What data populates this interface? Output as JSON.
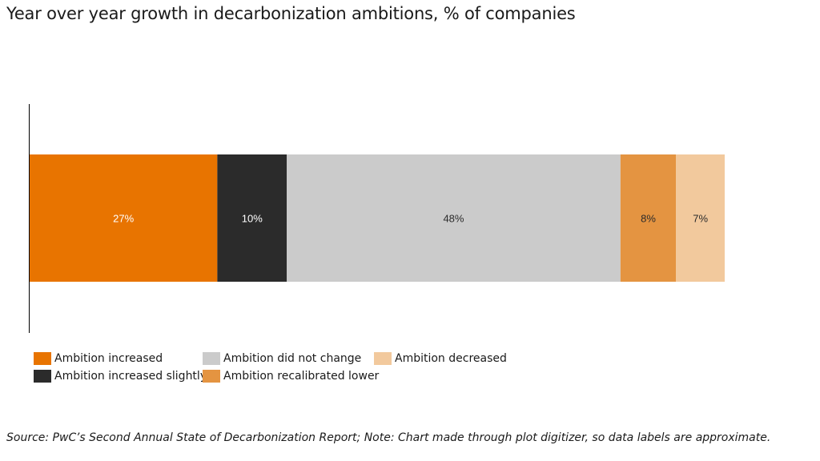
{
  "title": "Year over year growth in decarbonization ambitions, % of companies",
  "source_note": "Source: PwC’s Second Annual State of Decarbonization Report; Note: Chart made through plot digitizer, so data labels are approximate.",
  "chart_data": {
    "type": "bar",
    "orientation": "horizontal",
    "stacked": true,
    "title": "Year over year growth in decarbonization ambitions, % of companies",
    "xlabel": "",
    "ylabel": "",
    "xlim": [
      0,
      100
    ],
    "grid": false,
    "legend_position": "bottom-left",
    "series": [
      {
        "name": "Ambition increased",
        "value": 27,
        "label": "27%",
        "color": "#E87400",
        "label_color": "#ffffff"
      },
      {
        "name": "Ambition increased slightly",
        "value": 10,
        "label": "10%",
        "color": "#2B2B2B",
        "label_color": "#ffffff"
      },
      {
        "name": "Ambition did not change",
        "value": 48,
        "label": "48%",
        "color": "#CBCBCB",
        "label_color": "#2b2b2b"
      },
      {
        "name": "Ambition recalibrated lower",
        "value": 8,
        "label": "8%",
        "color": "#E49441",
        "label_color": "#2b2b2b"
      },
      {
        "name": "Ambition decreased",
        "value": 7,
        "label": "7%",
        "color": "#F2C99D",
        "label_color": "#2b2b2b"
      }
    ]
  }
}
